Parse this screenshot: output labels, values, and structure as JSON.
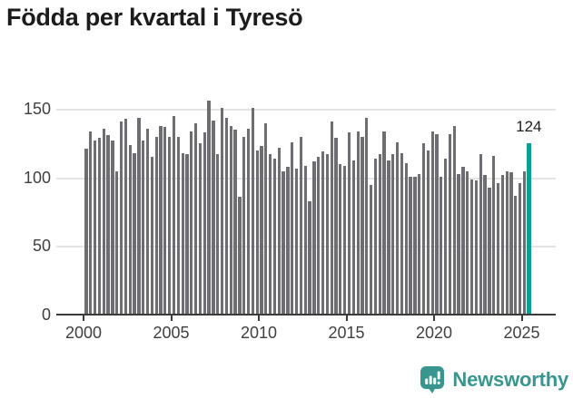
{
  "title": "Födda per kvartal i Tyresö",
  "annotation": {
    "value_label": "124"
  },
  "footer": {
    "brand": "Newsworthy"
  },
  "colors": {
    "bar": "#6E6E72",
    "highlight": "#0B9F98",
    "brand": "#39968F",
    "grid": "#E4E4E4",
    "axis": "#3B3B3B",
    "tick_text": "#3F3F3F",
    "title_text": "#1C1C1C"
  },
  "chart_data": {
    "type": "bar",
    "title": "Födda per kvartal i Tyresö",
    "x_unit": "quarter",
    "x_start": "2000 Q1",
    "x_end": "2025 Q2",
    "x_tick_labels": [
      "2000",
      "2005",
      "2010",
      "2015",
      "2020",
      "2025"
    ],
    "y_tick_labels": [
      "0",
      "50",
      "100",
      "150"
    ],
    "y_gridlines": [
      50,
      100,
      150
    ],
    "ylim": [
      0,
      160
    ],
    "grid": "horizontal",
    "legend": "none",
    "highlight_index": 101,
    "highlight_value": 124,
    "values": [
      120,
      133,
      126,
      128,
      135,
      130,
      126,
      104,
      140,
      142,
      123,
      117,
      143,
      126,
      135,
      114,
      129,
      137,
      136,
      129,
      144,
      129,
      117,
      116,
      133,
      139,
      124,
      132,
      155,
      141,
      116,
      150,
      143,
      137,
      134,
      85,
      129,
      135,
      150,
      119,
      122,
      139,
      116,
      113,
      121,
      104,
      107,
      125,
      106,
      129,
      108,
      82,
      111,
      114,
      118,
      116,
      140,
      128,
      109,
      108,
      132,
      112,
      133,
      129,
      143,
      94,
      113,
      116,
      133,
      112,
      116,
      125,
      117,
      110,
      100,
      100,
      102,
      124,
      119,
      133,
      131,
      100,
      113,
      131,
      137,
      102,
      107,
      104,
      98,
      97,
      116,
      101,
      92,
      115,
      95,
      101,
      104,
      103,
      86,
      95,
      104,
      124
    ]
  }
}
